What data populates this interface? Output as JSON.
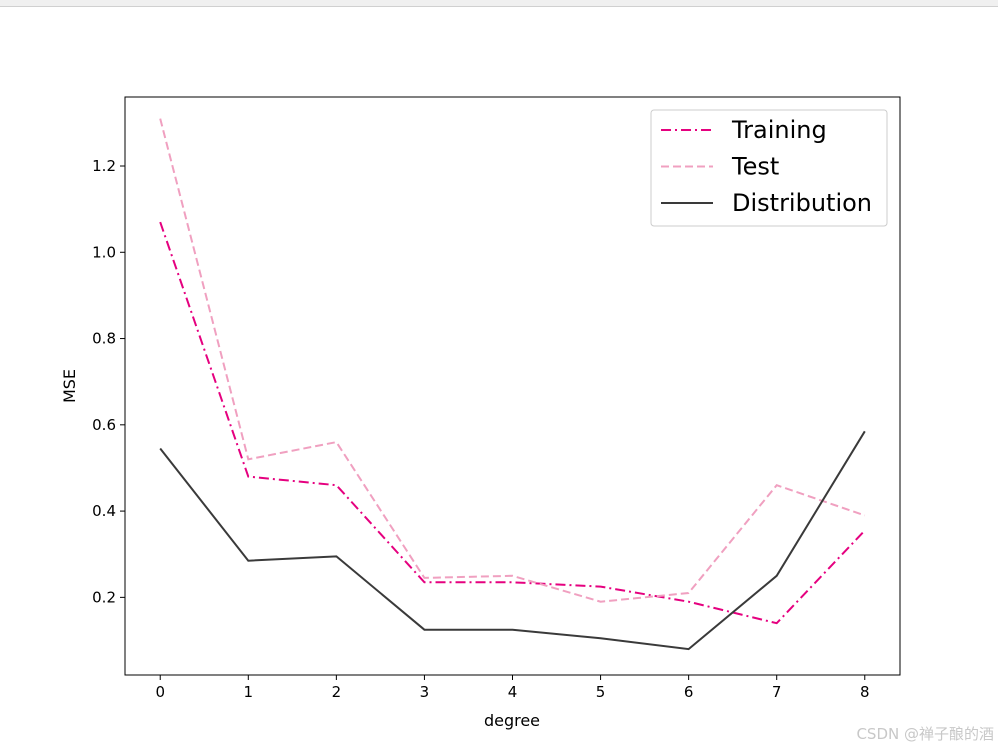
{
  "watermark": "CSDN @禅子酿的酒",
  "chart_data": {
    "type": "line",
    "xlabel": "degree",
    "ylabel": "MSE",
    "x": [
      0,
      1,
      2,
      3,
      4,
      5,
      6,
      7,
      8
    ],
    "xlim": [
      -0.4,
      8.4
    ],
    "ylim": [
      0.02,
      1.36
    ],
    "xticks": [
      "0",
      "1",
      "2",
      "3",
      "4",
      "5",
      "6",
      "7",
      "8"
    ],
    "yticks": [
      "0.2",
      "0.4",
      "0.6",
      "0.8",
      "1.0",
      "1.2"
    ],
    "ytick_values": [
      0.2,
      0.4,
      0.6,
      0.8,
      1.0,
      1.2
    ],
    "grid": false,
    "legend_position": "top-right",
    "series": [
      {
        "name": "Training",
        "values": [
          1.07,
          0.48,
          0.46,
          0.235,
          0.235,
          0.225,
          0.19,
          0.14,
          0.355
        ],
        "color": "#e5007f",
        "style": "dashdot"
      },
      {
        "name": "Test",
        "values": [
          1.31,
          0.52,
          0.56,
          0.245,
          0.25,
          0.19,
          0.21,
          0.46,
          0.39
        ],
        "color": "#f0a0c0",
        "style": "dashed"
      },
      {
        "name": "Distribution",
        "values": [
          0.545,
          0.285,
          0.295,
          0.125,
          0.125,
          0.105,
          0.08,
          0.25,
          0.585
        ],
        "color": "#3a3a3a",
        "style": "solid"
      }
    ]
  }
}
